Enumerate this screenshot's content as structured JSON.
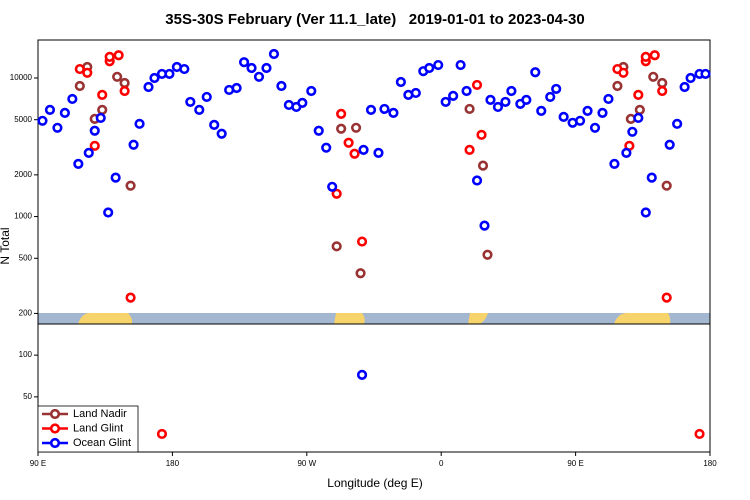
{
  "chart_data": {
    "type": "scatter",
    "title": "35S-30S February (Ver 11.1_late)   2019-01-01 to 2023-04-30",
    "x_label": "Longitude (deg E)",
    "y_label": "N Total",
    "log_y": true,
    "legend": "lower left",
    "xlim": [
      90,
      540
    ],
    "xticks": [
      {
        "value": 90,
        "label": "90 E"
      },
      180,
      {
        "value": 270,
        "label": "90 W"
      },
      {
        "value": 360,
        "label": "0"
      },
      {
        "value": 450,
        "label": "90 E"
      },
      {
        "value": 540,
        "label": "180"
      }
    ],
    "ylim": [
      20,
      18800
    ],
    "yticks": [
      50,
      100,
      200,
      500,
      1000,
      2000,
      5000,
      10000
    ],
    "series": [
      {
        "name": "Land Nadir",
        "color": "#993333",
        "x": [
          118,
          123,
          128,
          133,
          143,
          148,
          152,
          290,
          293,
          303,
          306,
          379,
          388,
          391,
          478,
          482,
          487,
          493,
          502,
          508,
          511
        ],
        "values": [
          8750,
          12000,
          5070,
          5890,
          10200,
          9200,
          1670,
          610,
          4300,
          4370,
          390,
          5980,
          2330,
          530,
          8750,
          12000,
          5070,
          5890,
          10200,
          9200,
          1670
        ]
      },
      {
        "name": "Land Glint",
        "color": "#ff0000",
        "x": [
          118,
          123,
          128,
          133,
          138,
          138,
          144,
          148,
          152,
          173,
          290,
          293,
          298,
          302,
          307,
          379,
          384,
          387,
          478,
          482,
          486,
          492,
          497,
          497,
          503,
          508,
          511,
          533
        ],
        "values": [
          11600,
          10900,
          3240,
          7550,
          13200,
          14200,
          14600,
          8060,
          260,
          27,
          1460,
          5510,
          3410,
          2840,
          660,
          3030,
          8910,
          3890,
          11600,
          10900,
          3240,
          7550,
          13200,
          14200,
          14600,
          8060,
          260,
          27
        ]
      },
      {
        "name": "Ocean Glint",
        "color": "#0000ff",
        "x": [
          93,
          98,
          103,
          108,
          113,
          117,
          124,
          128,
          132,
          137,
          142,
          154,
          158,
          164,
          168,
          173,
          178,
          183,
          188,
          192,
          198,
          203,
          208,
          213,
          218,
          223,
          228,
          233,
          238,
          243,
          248,
          253,
          258,
          263,
          267,
          273,
          278,
          283,
          287,
          308,
          313,
          318,
          322,
          328,
          333,
          338,
          343,
          348,
          352,
          358,
          363,
          368,
          373,
          377,
          384,
          389,
          393,
          398,
          403,
          407,
          413,
          417,
          423,
          427,
          433,
          437,
          442,
          448,
          453,
          458,
          463,
          468,
          472,
          476,
          484,
          488,
          492,
          497,
          501,
          513,
          518,
          523,
          527,
          533,
          537,
          307
        ],
        "values": [
          4910,
          5890,
          4370,
          5600,
          7060,
          2400,
          2880,
          4160,
          5150,
          1070,
          1910,
          3300,
          4670,
          8610,
          10000,
          10700,
          10700,
          12000,
          11600,
          6720,
          5890,
          7300,
          4590,
          3960,
          8200,
          8470,
          13000,
          11800,
          10200,
          11800,
          14900,
          8750,
          6390,
          6180,
          6610,
          8060,
          4160,
          3140,
          1640,
          3030,
          5890,
          2880,
          5980,
          5600,
          9360,
          7550,
          7800,
          11200,
          11800,
          12400,
          6720,
          7430,
          12400,
          8060,
          1820,
          860,
          6950,
          6180,
          6720,
          8060,
          6500,
          6950,
          11000,
          5790,
          7300,
          8340,
          5240,
          4750,
          4910,
          5790,
          4370,
          5600,
          7060,
          2400,
          2880,
          4090,
          5150,
          1070,
          1910,
          3300,
          4670,
          8610,
          10000,
          10700,
          10700,
          72
        ]
      }
    ]
  }
}
